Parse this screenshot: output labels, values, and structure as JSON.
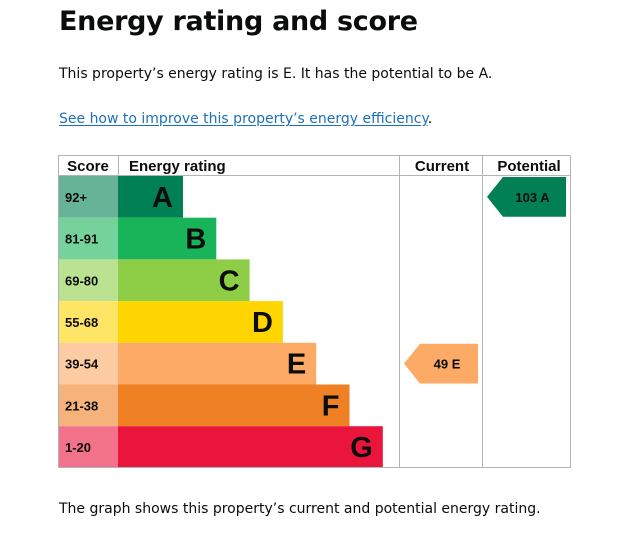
{
  "page": {
    "title": "Energy rating and score",
    "summary": "This property’s energy rating is E. It has the potential to be A.",
    "improve_link": "See how to improve this property’s energy efficiency",
    "improve_link_suffix": ".",
    "footer": "The graph shows this property’s current and potential energy rating."
  },
  "chart_data": {
    "type": "table",
    "headers": {
      "score": "Score",
      "rating": "Energy rating",
      "current": "Current",
      "potential": "Potential"
    },
    "bands": [
      {
        "score": "92+",
        "letter": "A",
        "color": "#008054",
        "score_bg": "#66b398",
        "letter_color": "#0b0c0c"
      },
      {
        "score": "81-91",
        "letter": "B",
        "color": "#19b459",
        "score_bg": "#75d29b",
        "letter_color": "#0b0c0c"
      },
      {
        "score": "69-80",
        "letter": "C",
        "color": "#8dce46",
        "score_bg": "#bbe290",
        "letter_color": "#0b0c0c"
      },
      {
        "score": "55-68",
        "letter": "D",
        "color": "#ffd500",
        "score_bg": "#ffe566",
        "letter_color": "#0b0c0c"
      },
      {
        "score": "39-54",
        "letter": "E",
        "color": "#fcaa65",
        "score_bg": "#fdcca3",
        "letter_color": "#0b0c0c"
      },
      {
        "score": "21-38",
        "letter": "F",
        "color": "#ef8023",
        "score_bg": "#f5b37b",
        "letter_color": "#0b0c0c"
      },
      {
        "score": "1-20",
        "letter": "G",
        "color": "#e9153b",
        "score_bg": "#f27389",
        "letter_color": "#0b0c0c"
      }
    ],
    "current": {
      "value": 49,
      "letter": "E",
      "label": "49 E",
      "color": "#fcaa65"
    },
    "potential": {
      "value": 103,
      "letter": "A",
      "label": "103 A",
      "color": "#008054"
    }
  }
}
